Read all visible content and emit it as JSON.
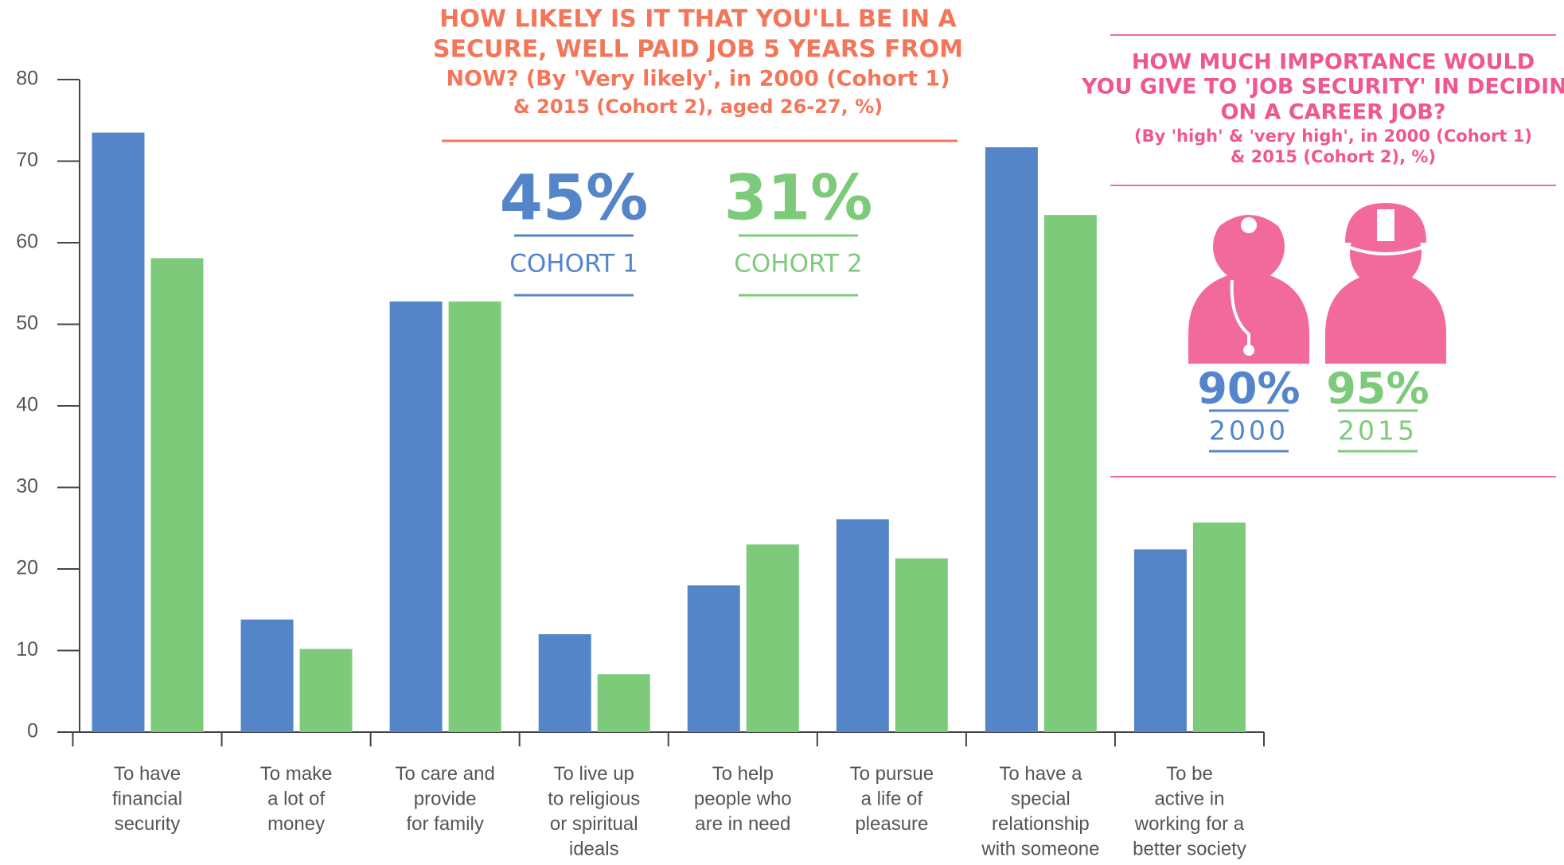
{
  "chart_data": {
    "type": "bar",
    "categories": [
      "To have\nfinancial\nsecurity",
      "To make\na lot of\nmoney",
      "To care and\nprovide\nfor family",
      "To live up\nto religious\nor spiritual\nideals",
      "To help\npeople who\nare in need",
      "To pursue\na life of\npleasure",
      "To have a\nspecial\nrelationship\nwith someone",
      "To be\nactive in\nworking for a\nbetter society"
    ],
    "series": [
      {
        "color": "#5585c9",
        "values": [
          73.5,
          13.8,
          52.8,
          12.0,
          18.0,
          26.1,
          71.7,
          22.4
        ]
      },
      {
        "color": "#7dcb7a",
        "values": [
          58.1,
          10.2,
          52.8,
          7.1,
          23.0,
          21.3,
          63.4,
          25.7
        ]
      }
    ],
    "ylim": [
      0,
      80
    ],
    "yticks": [
      0,
      10,
      20,
      30,
      40,
      50,
      60,
      70,
      80
    ],
    "grid": false,
    "annotations": [
      {
        "title": [
          "HOW LIKELY IS IT THAT YOU'LL BE IN A",
          "SECURE, WELL PAID JOB 5 YEARS FROM",
          "NOW? (By 'Very likely', in 2000 (Cohort 1)",
          "& 2015 (Cohort 2), aged 26-27, %)"
        ],
        "items": [
          {
            "value": "45%",
            "label": "COHORT 1",
            "color": "#5585c9"
          },
          {
            "value": "31%",
            "label": "COHORT 2",
            "color": "#7dcb7a"
          }
        ]
      },
      {
        "title": [
          "HOW MUCH IMPORTANCE WOULD",
          "YOU GIVE TO 'JOB SECURITY' IN DECIDING",
          "ON A CAREER JOB?",
          "(By 'high' & 'very high', in 2000 (Cohort 1)",
          "& 2015 (Cohort 2), %)"
        ],
        "items": [
          {
            "value": "90%",
            "label": "2000",
            "color": "#5585c9"
          },
          {
            "value": "95%",
            "label": "2015",
            "color": "#7dcb7a"
          }
        ]
      }
    ]
  }
}
